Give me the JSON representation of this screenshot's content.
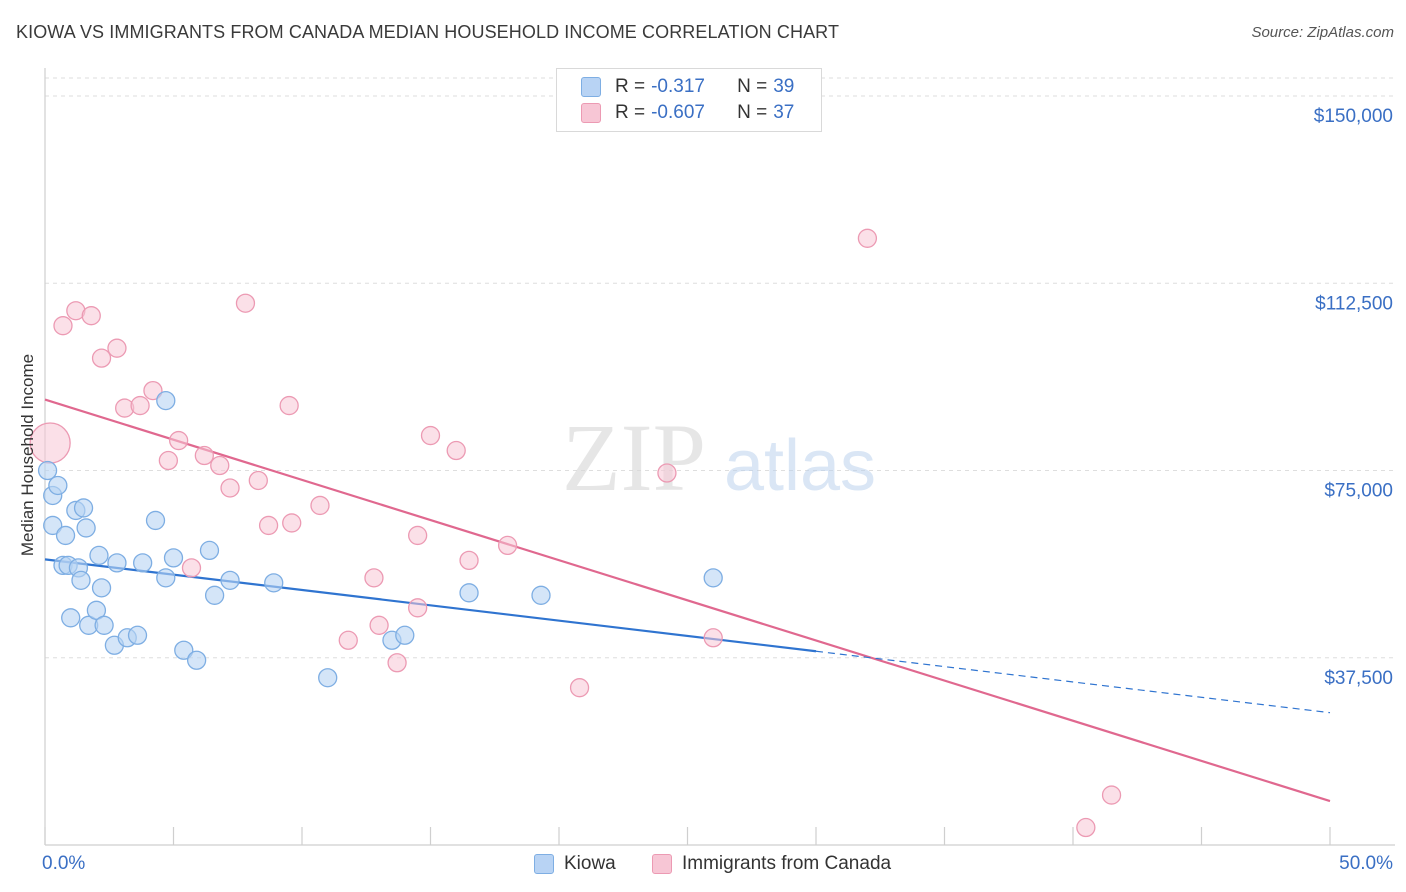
{
  "title": "KIOWA VS IMMIGRANTS FROM CANADA MEDIAN HOUSEHOLD INCOME CORRELATION CHART",
  "source": "Source: ZipAtlas.com",
  "watermark": {
    "zip": "ZIP",
    "atlas": "atlas"
  },
  "colors": {
    "kiowa_fill": "#b8d3f4",
    "kiowa_stroke": "#7eaee3",
    "kiowa_line": "#2f74d0",
    "canada_fill": "#f7c6d5",
    "canada_stroke": "#ec9ab3",
    "canada_line": "#e0688f",
    "tick_text": "#3a6fc4",
    "grid": "#dedede"
  },
  "legend": {
    "rows": [
      {
        "r_label": "R =",
        "r_value": "-0.317",
        "n_label": "N =",
        "n_value": "39"
      },
      {
        "r_label": "R =",
        "r_value": "-0.607",
        "n_label": "N =",
        "n_value": "37"
      }
    ]
  },
  "chart_data": {
    "type": "scatter",
    "title": "KIOWA VS IMMIGRANTS FROM CANADA MEDIAN HOUSEHOLD INCOME CORRELATION CHART",
    "xlabel": "",
    "ylabel": "Median Household Income",
    "xlim": [
      0,
      50
    ],
    "ylim": [
      0,
      150000
    ],
    "x_tick_labels": [
      "0.0%",
      "50.0%"
    ],
    "y_ticks": [
      37500,
      75000,
      112500,
      150000
    ],
    "y_tick_labels": [
      "$37,500",
      "$75,000",
      "$112,500",
      "$150,000"
    ],
    "grid": true,
    "legend_position": "top-center",
    "series": [
      {
        "name": "Kiowa",
        "points": [
          [
            0.1,
            75000
          ],
          [
            0.3,
            70000
          ],
          [
            0.5,
            72000
          ],
          [
            0.3,
            64000
          ],
          [
            0.8,
            62000
          ],
          [
            1.2,
            67000
          ],
          [
            1.5,
            67500
          ],
          [
            1.6,
            63500
          ],
          [
            0.7,
            56000
          ],
          [
            0.9,
            56000
          ],
          [
            1.3,
            55500
          ],
          [
            1.4,
            53000
          ],
          [
            2.1,
            58000
          ],
          [
            2.2,
            51500
          ],
          [
            2.8,
            56500
          ],
          [
            3.8,
            56500
          ],
          [
            4.3,
            65000
          ],
          [
            4.7,
            53500
          ],
          [
            5.0,
            57500
          ],
          [
            6.4,
            59000
          ],
          [
            4.7,
            89000
          ],
          [
            1.0,
            45500
          ],
          [
            1.7,
            44000
          ],
          [
            2.0,
            47000
          ],
          [
            2.3,
            44000
          ],
          [
            2.7,
            40000
          ],
          [
            3.2,
            41500
          ],
          [
            3.6,
            42000
          ],
          [
            5.4,
            39000
          ],
          [
            5.9,
            37000
          ],
          [
            6.6,
            50000
          ],
          [
            7.2,
            53000
          ],
          [
            8.9,
            52500
          ],
          [
            11.0,
            33500
          ],
          [
            13.5,
            41000
          ],
          [
            14.0,
            42000
          ],
          [
            16.5,
            50500
          ],
          [
            19.3,
            50000
          ],
          [
            26.0,
            53500
          ]
        ],
        "trend": {
          "x": [
            0,
            30
          ],
          "y": [
            57200,
            38800
          ],
          "dashed_extension": {
            "x": [
              30,
              50
            ],
            "y": [
              38800,
              26500
            ]
          }
        }
      },
      {
        "name": "Immigrants from Canada",
        "points": [
          [
            0.2,
            80500
          ],
          [
            0.7,
            104000
          ],
          [
            1.2,
            107000
          ],
          [
            1.8,
            106000
          ],
          [
            2.2,
            97500
          ],
          [
            2.8,
            99500
          ],
          [
            3.1,
            87500
          ],
          [
            3.7,
            88000
          ],
          [
            4.2,
            91000
          ],
          [
            5.2,
            81000
          ],
          [
            4.8,
            77000
          ],
          [
            6.2,
            78000
          ],
          [
            6.8,
            76000
          ],
          [
            7.2,
            71500
          ],
          [
            7.8,
            108500
          ],
          [
            8.3,
            73000
          ],
          [
            8.7,
            64000
          ],
          [
            9.5,
            88000
          ],
          [
            9.6,
            64500
          ],
          [
            10.7,
            68000
          ],
          [
            12.8,
            53500
          ],
          [
            5.7,
            55500
          ],
          [
            11.8,
            41000
          ],
          [
            13.0,
            44000
          ],
          [
            13.7,
            36500
          ],
          [
            14.5,
            62000
          ],
          [
            14.5,
            47500
          ],
          [
            15.0,
            82000
          ],
          [
            16.0,
            79000
          ],
          [
            16.5,
            57000
          ],
          [
            18.0,
            60000
          ],
          [
            20.8,
            31500
          ],
          [
            24.2,
            74500
          ],
          [
            26.0,
            41500
          ],
          [
            32.0,
            121500
          ],
          [
            41.5,
            10000
          ],
          [
            40.5,
            3500
          ]
        ],
        "trend": {
          "x": [
            0,
            50
          ],
          "y": [
            89200,
            8800
          ]
        }
      }
    ]
  }
}
